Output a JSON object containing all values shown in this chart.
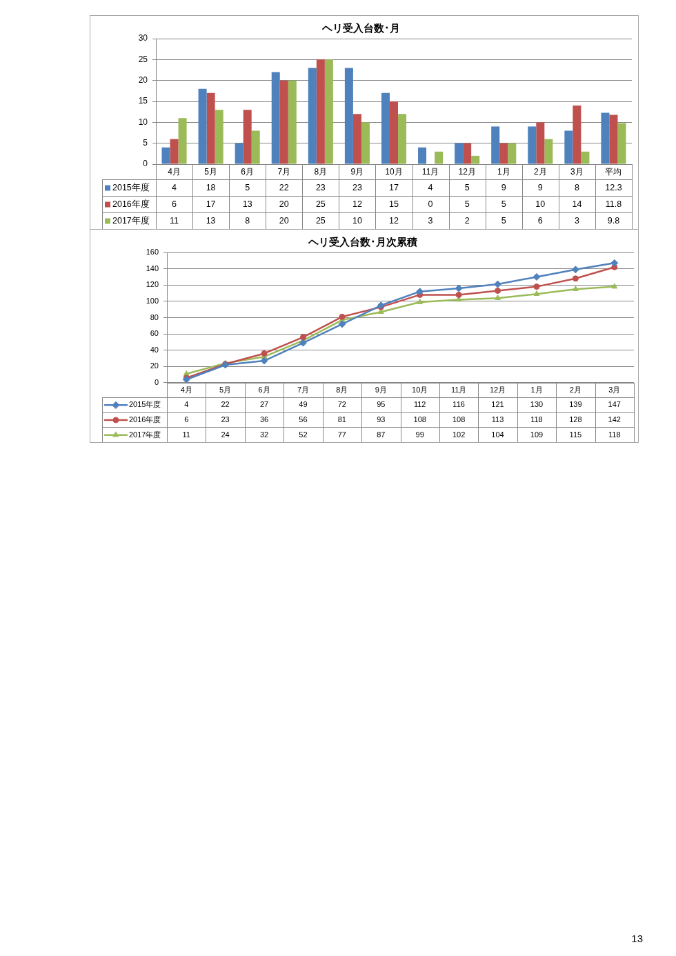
{
  "chart_data": [
    {
      "type": "bar",
      "title": "ヘリ受入台数･月",
      "categories": [
        "4月",
        "5月",
        "6月",
        "7月",
        "8月",
        "9月",
        "10月",
        "11月",
        "12月",
        "1月",
        "2月",
        "3月",
        "平均"
      ],
      "series": [
        {
          "name": "2015年度",
          "color": "#4f81bd",
          "values": [
            4,
            18,
            5,
            22,
            23,
            23,
            17,
            4,
            5,
            9,
            9,
            8,
            12.3
          ]
        },
        {
          "name": "2016年度",
          "color": "#c0504d",
          "values": [
            6,
            17,
            13,
            20,
            25,
            12,
            15,
            0,
            5,
            5,
            10,
            14,
            11.8
          ]
        },
        {
          "name": "2017年度",
          "color": "#9bbb59",
          "values": [
            11,
            13,
            8,
            20,
            25,
            10,
            12,
            3,
            2,
            5,
            6,
            3,
            9.8
          ]
        }
      ],
      "ylim": [
        0,
        30
      ],
      "yticks": [
        0,
        5,
        10,
        15,
        20,
        25,
        30
      ],
      "grid": "y",
      "legend": "bottom left",
      "data_labels": true
    },
    {
      "type": "line",
      "title": "ヘリ受入台数･月次累積",
      "categories": [
        "4月",
        "5月",
        "6月",
        "7月",
        "8月",
        "9月",
        "10月",
        "11月",
        "12月",
        "1月",
        "2月",
        "3月"
      ],
      "series": [
        {
          "name": "2015年度",
          "color": "#4f81bd",
          "marker": "diamond",
          "values": [
            4,
            22,
            27,
            49,
            72,
            95,
            112,
            116,
            121,
            130,
            139,
            147
          ]
        },
        {
          "name": "2016年度",
          "color": "#c0504d",
          "marker": "circle",
          "values": [
            6,
            23,
            36,
            56,
            81,
            93,
            108,
            108,
            113,
            118,
            128,
            142
          ]
        },
        {
          "name": "2017年度",
          "color": "#9bbb59",
          "marker": "triangle",
          "values": [
            11,
            24,
            32,
            52,
            77,
            87,
            99,
            102,
            104,
            109,
            115,
            118
          ]
        }
      ],
      "ylim": [
        0,
        160
      ],
      "yticks": [
        0,
        20,
        40,
        60,
        80,
        100,
        120,
        140,
        160
      ],
      "grid": "y",
      "legend": "bottom left",
      "line_style": "solid",
      "data_labels": true,
      "annotations": [
        "13"
      ]
    }
  ]
}
